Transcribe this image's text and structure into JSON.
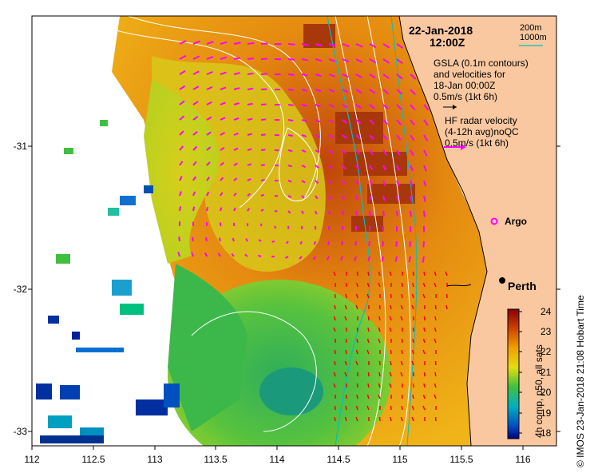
{
  "date": "22-Jan-2018",
  "time": "12:00Z",
  "isobath_legend": {
    "line1": "200m",
    "line2": "1000m"
  },
  "gsla_legend": {
    "line1": "GSLA (0.1m contours)",
    "line2": "and velocities for",
    "line3": "18-Jan 00:00Z",
    "line4": "0.5m/s (1kt 6h)"
  },
  "hf_legend": {
    "line1": "HF radar velocity",
    "line2": "(4-12h avg)noQC",
    "line3": "0.5m/s (1kt 6h)"
  },
  "argo_label": "Argo",
  "city_label": "Perth",
  "colorbar": {
    "label": "4h comp, p50, all sats",
    "ticks": [
      "24",
      "23",
      "22",
      "21",
      "20",
      "19",
      "18"
    ]
  },
  "credit": "© IMOS 23-Jan-2018 21:08 Hobart Time",
  "x_ticks": [
    "112",
    "112.5",
    "113",
    "113.5",
    "114",
    "114.5",
    "115",
    "115.5",
    "116"
  ],
  "y_ticks": [
    "-31",
    "-32",
    "-33"
  ],
  "colors": {
    "land": "#f9c8a0",
    "cloud": "#ffffff",
    "gsla_arrow": "#ff00ff",
    "hf_arrow": "#ff0000",
    "isobath_1000": "#00bfbf",
    "contour": "#ffffff"
  }
}
